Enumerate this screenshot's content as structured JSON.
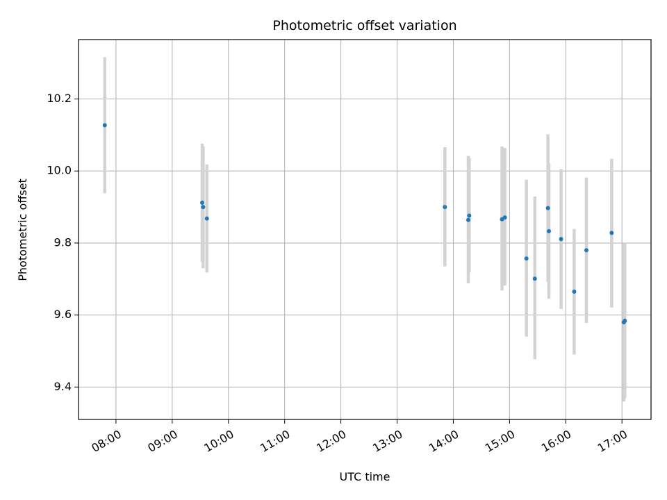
{
  "chart_data": {
    "type": "scatter",
    "title": "Photometric offset variation",
    "xlabel": "UTC time",
    "ylabel": "Photometric offset",
    "x_axis_type": "time",
    "xlim": [
      "07:20",
      "17:31"
    ],
    "ylim": [
      9.31,
      10.365
    ],
    "x_ticks": [
      "08:00",
      "09:00",
      "10:00",
      "11:00",
      "12:00",
      "13:00",
      "14:00",
      "15:00",
      "16:00",
      "17:00"
    ],
    "y_ticks": [
      9.4,
      9.6,
      9.8,
      10.0,
      10.2
    ],
    "y_tick_labels": [
      "9.4",
      "9.6",
      "9.8",
      "10.0",
      "10.2"
    ],
    "grid": true,
    "point_color": "#1f77b4",
    "errorbar_color": "#d3d3d3",
    "points": [
      {
        "time": "07:48",
        "y": 10.127,
        "ylow": 9.938,
        "yhigh": 10.316
      },
      {
        "time": "09:32",
        "y": 9.912,
        "ylow": 9.748,
        "yhigh": 10.076
      },
      {
        "time": "09:33",
        "y": 9.9,
        "ylow": 9.73,
        "yhigh": 10.068
      },
      {
        "time": "09:37",
        "y": 9.868,
        "ylow": 9.718,
        "yhigh": 10.018
      },
      {
        "time": "13:51",
        "y": 9.9,
        "ylow": 9.735,
        "yhigh": 10.066
      },
      {
        "time": "14:16",
        "y": 9.864,
        "ylow": 9.688,
        "yhigh": 10.042
      },
      {
        "time": "14:17",
        "y": 9.876,
        "ylow": 9.718,
        "yhigh": 10.036
      },
      {
        "time": "14:52",
        "y": 9.866,
        "ylow": 9.668,
        "yhigh": 10.068
      },
      {
        "time": "14:55",
        "y": 9.871,
        "ylow": 9.682,
        "yhigh": 10.064
      },
      {
        "time": "15:18",
        "y": 9.757,
        "ylow": 9.54,
        "yhigh": 9.976
      },
      {
        "time": "15:27",
        "y": 9.701,
        "ylow": 9.477,
        "yhigh": 9.929
      },
      {
        "time": "15:41",
        "y": 9.897,
        "ylow": 9.692,
        "yhigh": 10.102
      },
      {
        "time": "15:42",
        "y": 9.833,
        "ylow": 9.645,
        "yhigh": 10.021
      },
      {
        "time": "15:55",
        "y": 9.811,
        "ylow": 9.617,
        "yhigh": 10.005
      },
      {
        "time": "16:09",
        "y": 9.665,
        "ylow": 9.49,
        "yhigh": 9.839
      },
      {
        "time": "16:22",
        "y": 9.78,
        "ylow": 9.578,
        "yhigh": 9.982
      },
      {
        "time": "16:49",
        "y": 9.828,
        "ylow": 9.621,
        "yhigh": 10.034
      },
      {
        "time": "17:02",
        "y": 9.58,
        "ylow": 9.36,
        "yhigh": 9.8
      },
      {
        "time": "17:03",
        "y": 9.584,
        "ylow": 9.37,
        "yhigh": 9.8
      }
    ]
  }
}
